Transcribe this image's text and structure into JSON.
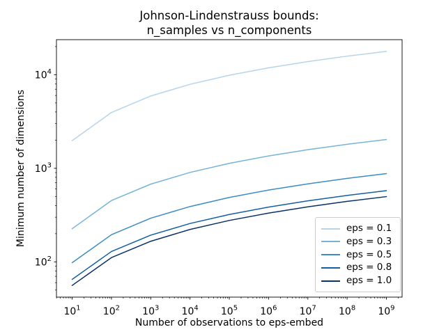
{
  "chart_data": {
    "type": "line",
    "title": "Johnson-Lindenstrauss bounds:\nn_samples vs n_components",
    "xlabel": "Number of observations to eps-embed",
    "ylabel": "Minimum number of dimensions",
    "xscale": "log",
    "yscale": "log",
    "grid": false,
    "background": "#ffffff",
    "frame_color": "#000000",
    "legend_position": "lower right",
    "legend_border_color": "#cccccc",
    "x": [
      10,
      100,
      1000,
      10000,
      100000,
      1000000,
      10000000,
      100000000,
      1000000000
    ],
    "xtick_exponents": [
      1,
      2,
      3,
      4,
      5,
      6,
      7,
      8,
      9
    ],
    "ytick_exponents": [
      2,
      3,
      4
    ],
    "series": [
      {
        "label": "eps = 0.1",
        "color": "#b6d4e9",
        "values": [
          1974,
          3948,
          5921,
          7895,
          9869,
          11842,
          13816,
          15790,
          17763
        ]
      },
      {
        "label": "eps = 0.3",
        "color": "#75b4d8",
        "values": [
          226,
          452,
          677,
          903,
          1129,
          1354,
          1580,
          1805,
          2031
        ]
      },
      {
        "label": "eps = 0.5",
        "color": "#3c8cc3",
        "values": [
          98,
          195,
          293,
          390,
          488,
          585,
          682,
          780,
          877
        ]
      },
      {
        "label": "eps = 0.8",
        "color": "#125ea6",
        "values": [
          65,
          129,
          193,
          257,
          321,
          385,
          449,
          513,
          577
        ]
      },
      {
        "label": "eps = 1.0",
        "color": "#08306b",
        "values": [
          56,
          111,
          166,
          222,
          277,
          332,
          387,
          443,
          498
        ]
      }
    ]
  }
}
